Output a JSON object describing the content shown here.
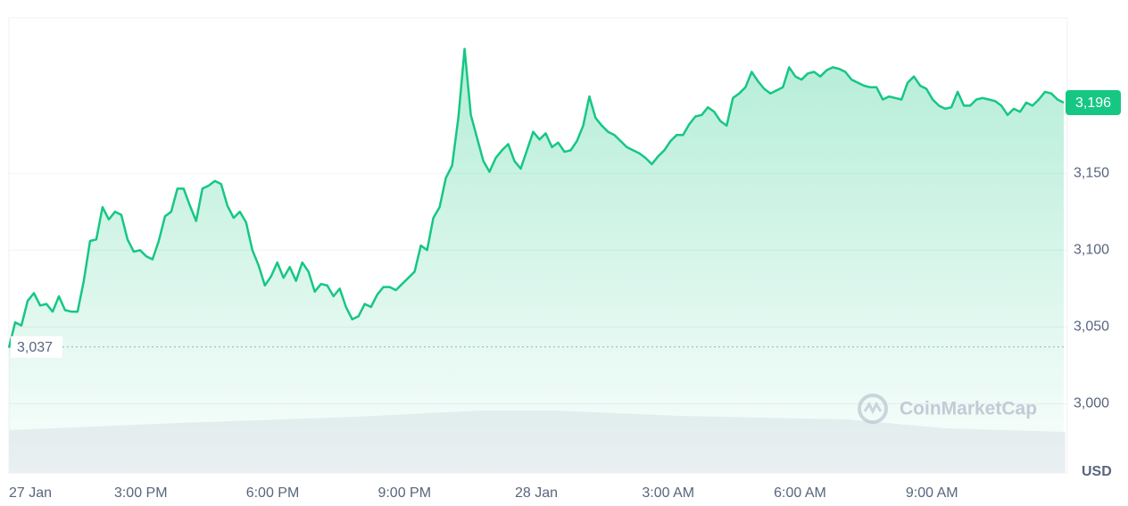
{
  "chart_data": {
    "type": "area",
    "series": [
      {
        "name": "Price",
        "color": "#16c784",
        "values": [
          3036.5,
          3053,
          3051,
          3067,
          3072,
          3064,
          3065,
          3060,
          3070,
          3061,
          3060,
          3060,
          3080,
          3106,
          3107,
          3128,
          3120,
          3125,
          3123,
          3107,
          3099,
          3100,
          3096,
          3094,
          3106,
          3122,
          3125,
          3140,
          3140,
          3129,
          3119,
          3140,
          3142,
          3145,
          3143,
          3129,
          3121,
          3125,
          3118,
          3100,
          3090,
          3077,
          3083,
          3092,
          3082,
          3089,
          3080,
          3092,
          3086,
          3073,
          3078,
          3077,
          3070,
          3075,
          3063,
          3055,
          3057,
          3065,
          3063,
          3071,
          3076,
          3076,
          3074,
          3078,
          3082,
          3086,
          3103,
          3100,
          3121,
          3128,
          3147,
          3155,
          3186,
          3231,
          3188,
          3173,
          3158,
          3151,
          3160,
          3165,
          3169,
          3158,
          3153,
          3165,
          3177,
          3172,
          3176,
          3167,
          3170,
          3164,
          3165,
          3171,
          3181,
          3200,
          3186,
          3181,
          3177,
          3175,
          3171,
          3167,
          3165,
          3163,
          3160,
          3156,
          3161,
          3165,
          3171,
          3175,
          3175,
          3182,
          3187,
          3188,
          3193,
          3190,
          3184,
          3181,
          3199,
          3202,
          3206,
          3216,
          3210,
          3205,
          3202,
          3204,
          3206,
          3219,
          3213,
          3211,
          3215,
          3216,
          3213,
          3217,
          3219,
          3218,
          3216,
          3211,
          3209,
          3207,
          3206,
          3206,
          3198,
          3200,
          3199,
          3198,
          3209,
          3213,
          3207,
          3205,
          3198,
          3194,
          3192,
          3193,
          3203,
          3194,
          3194,
          3198,
          3199,
          3198,
          3197,
          3194,
          3188,
          3192,
          3190,
          3196,
          3194,
          3198,
          3203,
          3202,
          3198,
          3196
        ]
      }
    ],
    "xlim": [
      0,
      24
    ],
    "xticks": [
      {
        "value": 0,
        "label": "27 Jan"
      },
      {
        "value": 3,
        "label": "3:00 PM"
      },
      {
        "value": 6,
        "label": "6:00 PM"
      },
      {
        "value": 9,
        "label": "9:00 PM"
      },
      {
        "value": 12,
        "label": "28 Jan"
      },
      {
        "value": 15,
        "label": "3:00 AM"
      },
      {
        "value": 18,
        "label": "6:00 AM"
      },
      {
        "value": 21,
        "label": "9:00 AM"
      }
    ],
    "ylim": [
      2955,
      3250
    ],
    "yticks": [
      {
        "value": 3000,
        "label": "3,000"
      },
      {
        "value": 3050,
        "label": "3,050"
      },
      {
        "value": 3100,
        "label": "3,100"
      },
      {
        "value": 3150,
        "label": "3,150"
      }
    ],
    "grid": true,
    "reference": {
      "value": 3037,
      "label": "3,037"
    },
    "current": {
      "value": 3196,
      "label": "3,196"
    },
    "currency": "USD",
    "watermark": "CoinMarketCap"
  }
}
